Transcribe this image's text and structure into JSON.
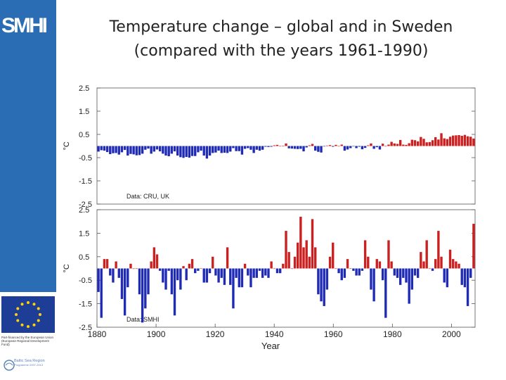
{
  "logo": "SMHI",
  "title_line1": "Temperature change – global and in Sweden",
  "title_line2": "(compared with the years 1961-1990)",
  "eu_text": "Part-financed by the European Union (European Regional Development Fund)",
  "bsr_text": "Baltic Sea Region",
  "bsr_sub": "Programme 2007-2013",
  "colors": {
    "warm": "#cc1f1f",
    "cool": "#1f2bb5",
    "sidebar": "#2a6db5"
  },
  "chart_data": [
    {
      "type": "bar",
      "panel": "global",
      "ylabel": "°C",
      "ylim": [
        -2.5,
        2.5
      ],
      "yticks": [
        "2.5",
        "1.5",
        "0.5",
        "-0.5",
        "-1.5",
        "-2.5"
      ],
      "annotation": "Data: CRU, UK",
      "x_start": 1880,
      "x_end": 2008,
      "values": [
        -0.24,
        -0.18,
        -0.2,
        -0.26,
        -0.35,
        -0.31,
        -0.3,
        -0.37,
        -0.27,
        -0.17,
        -0.41,
        -0.34,
        -0.36,
        -0.4,
        -0.39,
        -0.33,
        -0.16,
        -0.11,
        -0.33,
        -0.24,
        -0.15,
        -0.23,
        -0.33,
        -0.41,
        -0.44,
        -0.33,
        -0.23,
        -0.41,
        -0.48,
        -0.51,
        -0.47,
        -0.5,
        -0.43,
        -0.43,
        -0.27,
        -0.2,
        -0.41,
        -0.54,
        -0.41,
        -0.3,
        -0.28,
        -0.2,
        -0.3,
        -0.29,
        -0.3,
        -0.24,
        -0.09,
        -0.22,
        -0.22,
        -0.37,
        -0.12,
        -0.09,
        -0.16,
        -0.3,
        -0.16,
        -0.2,
        -0.16,
        -0.03,
        -0.04,
        -0.03,
        0.03,
        0.05,
        0.0,
        0.01,
        0.11,
        -0.1,
        -0.11,
        -0.12,
        -0.13,
        -0.12,
        -0.23,
        -0.06,
        0.03,
        0.09,
        -0.2,
        -0.25,
        -0.28,
        -0.02,
        0.02,
        0.04,
        -0.03,
        0.05,
        0.0,
        0.06,
        -0.2,
        -0.15,
        -0.09,
        -0.01,
        -0.09,
        -0.03,
        -0.14,
        -0.08,
        0.03,
        0.11,
        -0.12,
        -0.05,
        -0.15,
        0.1,
        0.0,
        0.06,
        0.18,
        0.11,
        0.09,
        0.26,
        0.06,
        0.05,
        0.12,
        0.27,
        0.25,
        0.2,
        0.39,
        0.31,
        0.16,
        0.17,
        0.25,
        0.38,
        0.28,
        0.55,
        0.33,
        0.3,
        0.4,
        0.45,
        0.46,
        0.47,
        0.44,
        0.48,
        0.42,
        0.4,
        0.32
      ]
    },
    {
      "type": "bar",
      "panel": "sweden",
      "ylabel": "°C",
      "ylim": [
        -2.5,
        2.5
      ],
      "yticks": [
        "2.5",
        "1.5",
        "0.5",
        "-0.5",
        "-1.5",
        "-2.5"
      ],
      "annotation": "Data: SMHI",
      "xlabel": "Year",
      "xticks": [
        "1880",
        "1900",
        "1920",
        "1940",
        "1960",
        "1980",
        "2000"
      ],
      "x_start": 1880,
      "x_end": 2008,
      "values": [
        -1.0,
        -2.1,
        0.4,
        0.4,
        -0.3,
        -0.6,
        0.3,
        -0.4,
        -1.3,
        -2.0,
        -0.8,
        0.2,
        0.0,
        0.0,
        -1.1,
        -2.3,
        -1.7,
        -1.1,
        0.3,
        0.9,
        0.6,
        -0.1,
        -0.6,
        -0.9,
        -0.1,
        -1.1,
        -2.0,
        -0.5,
        -0.9,
        0.1,
        -0.5,
        0.2,
        0.4,
        -0.2,
        -0.1,
        0.0,
        -0.6,
        -0.6,
        -0.2,
        0.5,
        -0.3,
        -0.6,
        -0.4,
        -0.7,
        0.9,
        -0.7,
        -1.7,
        -0.4,
        -0.8,
        -0.8,
        0.2,
        -0.3,
        -0.8,
        -0.4,
        -0.4,
        -0.1,
        -0.4,
        -0.3,
        -0.4,
        0.3,
        0.0,
        -0.2,
        -0.2,
        0.2,
        1.6,
        0.7,
        0.0,
        0.5,
        1.1,
        2.2,
        0.9,
        1.2,
        0.5,
        2.1,
        0.9,
        -1.1,
        -1.4,
        -1.6,
        -0.9,
        0.5,
        1.1,
        0.0,
        -0.2,
        -0.5,
        -0.4,
        0.4,
        0.0,
        -0.1,
        -0.3,
        -0.3,
        -0.1,
        1.2,
        0.5,
        -0.9,
        -1.4,
        0.4,
        0.3,
        -0.5,
        -2.1,
        1.2,
        0.3,
        -0.3,
        -0.4,
        -0.7,
        -0.4,
        -0.6,
        -1.5,
        -0.9,
        -0.3,
        -0.4,
        0.7,
        0.3,
        1.2,
        0.0,
        -0.1,
        0.4,
        1.6,
        0.5,
        -0.6,
        -0.8,
        0.8,
        0.4,
        0.3,
        0.2,
        -0.7,
        -0.8,
        -1.6,
        -0.4,
        1.9
      ]
    }
  ]
}
